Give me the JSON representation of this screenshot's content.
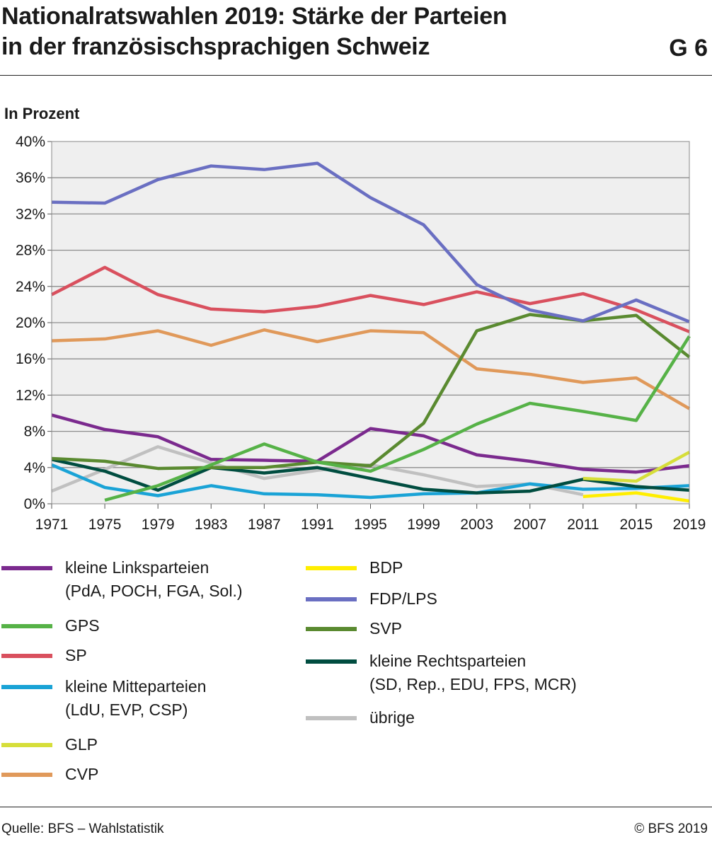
{
  "header": {
    "title_line1": "Nationalratswahlen 2019: Stärke der Parteien",
    "title_line2": "in der französischsprachigen Schweiz",
    "figure_code": "G 6",
    "unit_label": "In Prozent"
  },
  "footer": {
    "source": "Quelle: BFS – Wahlstatistik",
    "copyright": "© BFS 2019"
  },
  "chart_data": {
    "type": "line",
    "title": "Nationalratswahlen 2019: Stärke der Parteien in der französischsprachigen Schweiz",
    "ylabel": "In Prozent",
    "xlabel": "",
    "x": [
      1971,
      1975,
      1979,
      1983,
      1987,
      1991,
      1995,
      1999,
      2003,
      2007,
      2011,
      2015,
      2019
    ],
    "x_tick_labels": [
      "1971",
      "1975",
      "1979",
      "1983",
      "1987",
      "1991",
      "1995",
      "1999",
      "2003",
      "2007",
      "2011",
      "2015",
      "2019"
    ],
    "ylim": [
      0,
      40
    ],
    "y_ticks": [
      0,
      4,
      8,
      12,
      16,
      20,
      24,
      28,
      32,
      36,
      40
    ],
    "y_tick_labels": [
      "0%",
      "4%",
      "8%",
      "12%",
      "16%",
      "20%",
      "24%",
      "28%",
      "32%",
      "36%",
      "40%"
    ],
    "grid": true,
    "plot_background": "#efefef",
    "legend_position": "bottom",
    "series": [
      {
        "key": "uebrige",
        "color": "#c0c0c0",
        "values": [
          1.4,
          3.8,
          6.3,
          4.5,
          2.8,
          3.7,
          4.3,
          3.2,
          1.9,
          2.2,
          1.0,
          null,
          null
        ]
      },
      {
        "key": "kmp",
        "color": "#1aa3d6",
        "values": [
          4.3,
          1.8,
          0.9,
          2.0,
          1.1,
          1.0,
          0.7,
          1.1,
          1.2,
          2.2,
          1.6,
          1.7,
          2.0
        ]
      },
      {
        "key": "krp",
        "color": "#004d40",
        "values": [
          4.9,
          3.6,
          1.5,
          4.0,
          3.4,
          4.0,
          2.8,
          1.6,
          1.2,
          1.4,
          2.7,
          1.9,
          1.5
        ]
      },
      {
        "key": "klp",
        "color": "#7b2a8e",
        "values": [
          9.8,
          8.2,
          7.4,
          4.9,
          4.8,
          4.7,
          8.3,
          7.5,
          5.4,
          4.7,
          3.8,
          3.5,
          4.2
        ]
      },
      {
        "key": "bdp",
        "color": "#ffee00",
        "values": [
          null,
          null,
          null,
          null,
          null,
          null,
          null,
          null,
          null,
          null,
          0.8,
          1.2,
          0.3
        ]
      },
      {
        "key": "glp",
        "color": "#d6de3a",
        "values": [
          null,
          null,
          null,
          null,
          null,
          null,
          null,
          null,
          null,
          null,
          2.8,
          2.5,
          5.7
        ]
      },
      {
        "key": "cvp",
        "color": "#e0995a",
        "values": [
          18.0,
          18.2,
          19.1,
          17.5,
          19.2,
          17.9,
          19.1,
          18.9,
          14.9,
          14.3,
          13.4,
          13.9,
          10.5
        ]
      },
      {
        "key": "sp",
        "color": "#d9505e",
        "values": [
          23.1,
          26.1,
          23.1,
          21.5,
          21.2,
          21.8,
          23.0,
          22.0,
          23.4,
          22.1,
          23.2,
          21.4,
          19.0
        ]
      },
      {
        "key": "svp",
        "color": "#5a8a30",
        "values": [
          5.0,
          4.7,
          3.9,
          4.0,
          4.0,
          4.6,
          4.2,
          8.9,
          19.1,
          20.9,
          20.2,
          20.8,
          16.2
        ]
      },
      {
        "key": "gps",
        "color": "#56b247",
        "values": [
          null,
          0.4,
          2.0,
          4.3,
          6.6,
          4.6,
          3.6,
          6.0,
          8.8,
          11.1,
          10.2,
          9.2,
          18.5
        ]
      },
      {
        "key": "fdp",
        "color": "#6a6fc2",
        "values": [
          33.3,
          33.2,
          35.8,
          37.3,
          36.9,
          37.6,
          33.8,
          30.8,
          24.2,
          21.4,
          20.2,
          22.5,
          20.1
        ]
      }
    ]
  },
  "legend": {
    "items": [
      {
        "key": "klp",
        "color": "#7b2a8e",
        "line1": "kleine Linksparteien",
        "line2": "(PdA, POCH, FGA, Sol.)"
      },
      {
        "key": "gps",
        "color": "#56b247",
        "line1": "GPS",
        "line2": ""
      },
      {
        "key": "sp",
        "color": "#d9505e",
        "line1": "SP",
        "line2": ""
      },
      {
        "key": "kmp",
        "color": "#1aa3d6",
        "line1": "kleine Mitteparteien",
        "line2": "(LdU, EVP, CSP)"
      },
      {
        "key": "glp",
        "color": "#d6de3a",
        "line1": "GLP",
        "line2": ""
      },
      {
        "key": "cvp",
        "color": "#e0995a",
        "line1": "CVP",
        "line2": ""
      },
      {
        "key": "bdp",
        "color": "#ffee00",
        "line1": "BDP",
        "line2": ""
      },
      {
        "key": "fdp",
        "color": "#6a6fc2",
        "line1": "FDP/LPS",
        "line2": ""
      },
      {
        "key": "svp",
        "color": "#5a8a30",
        "line1": "SVP",
        "line2": ""
      },
      {
        "key": "krp",
        "color": "#004d40",
        "line1": "kleine Rechtsparteien",
        "line2": "(SD, Rep., EDU, FPS, MCR)"
      },
      {
        "key": "uebrige",
        "color": "#c0c0c0",
        "line1": "übrige",
        "line2": ""
      }
    ]
  }
}
